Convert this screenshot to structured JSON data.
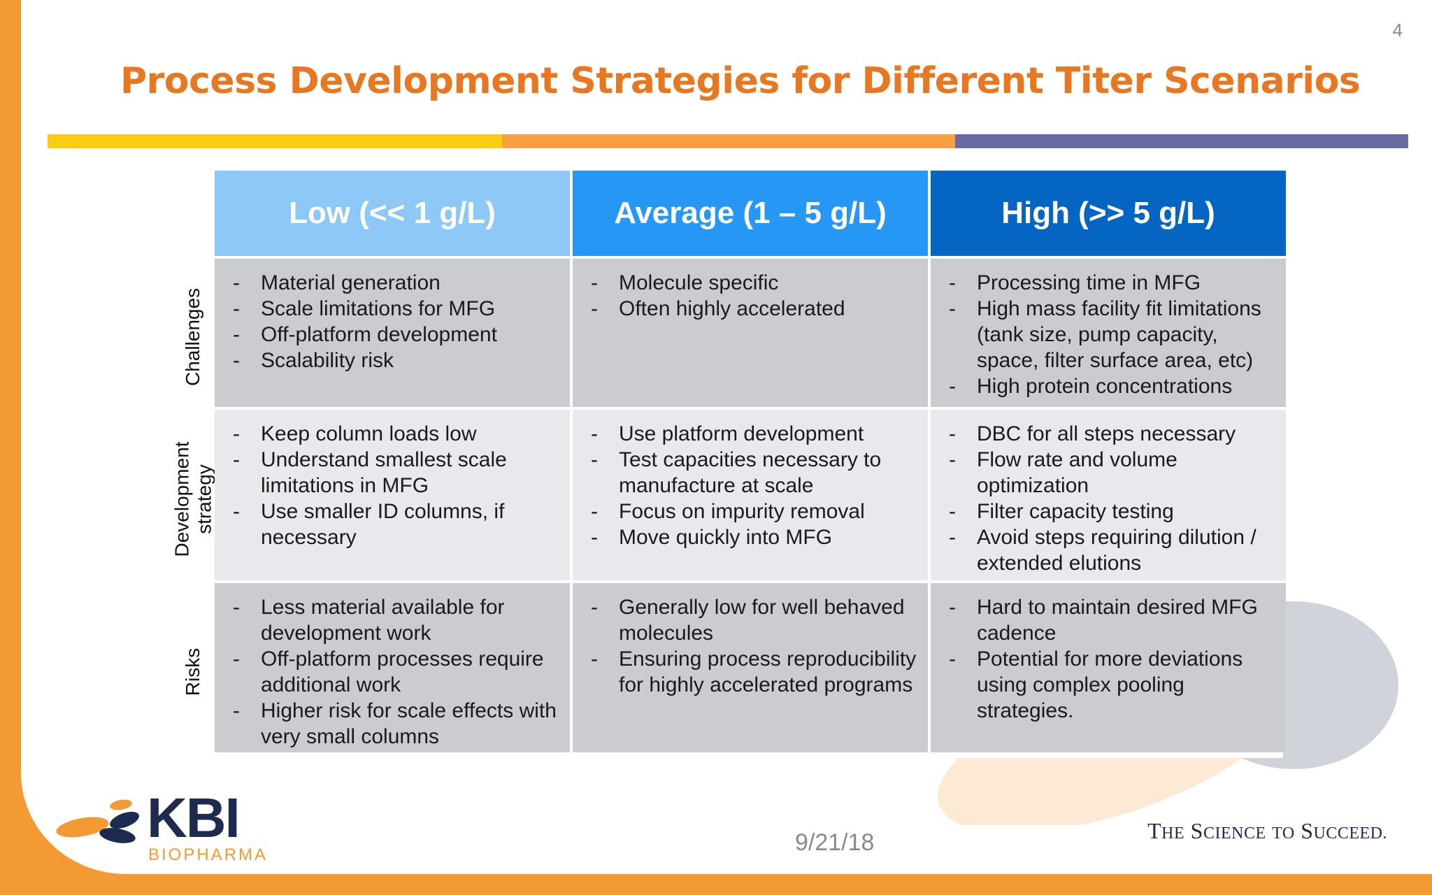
{
  "page_number": "4",
  "title": "Process Development Strategies for Different Titer Scenarios",
  "columns": [
    "Low (<< 1 g/L)",
    "Average (1 – 5 g/L)",
    "High (>> 5 g/L)"
  ],
  "rows": [
    {
      "label": "Challenges",
      "cells": [
        [
          "Material generation",
          "Scale limitations for MFG",
          "Off-platform development",
          "Scalability risk"
        ],
        [
          "Molecule specific",
          "Often highly accelerated"
        ],
        [
          "Processing time in MFG",
          "High mass facility fit limitations (tank size, pump capacity, space, filter surface area, etc)",
          "High protein concentrations"
        ]
      ]
    },
    {
      "label_line1": "Development",
      "label_line2": "strategy",
      "cells": [
        [
          "Keep column loads low",
          "Understand smallest scale limitations in MFG",
          "Use smaller ID columns, if necessary"
        ],
        [
          "Use platform development",
          "Test capacities necessary to manufacture at scale",
          "Focus on impurity removal",
          "Move quickly into MFG"
        ],
        [
          "DBC for all steps necessary",
          "Flow rate and volume optimization",
          "Filter capacity testing",
          "Avoid steps requiring dilution / extended elutions"
        ]
      ]
    },
    {
      "label": "Risks",
      "cells": [
        [
          "Less material available for development work",
          "Off-platform processes require additional work",
          "Higher risk for scale effects with very small columns"
        ],
        [
          "Generally low for well behaved molecules",
          "Ensuring process reproducibility for highly accelerated programs"
        ],
        [
          "Hard to maintain desired MFG cadence",
          "Potential for more deviations using complex pooling strategies."
        ]
      ]
    }
  ],
  "date": "9/21/18",
  "logo": {
    "name": "KBI",
    "sub": "BIOPHARMA"
  },
  "tagline": {
    "t": "T",
    "he": "HE",
    "s": "S",
    "cience": "CIENCE",
    "to": "TO",
    "s2": "S",
    "ucceed": "UCCEED."
  },
  "colors": {
    "accent": "#e87722",
    "low": "#8ec8f7",
    "average": "#2697f5",
    "high": "#0565c2"
  }
}
